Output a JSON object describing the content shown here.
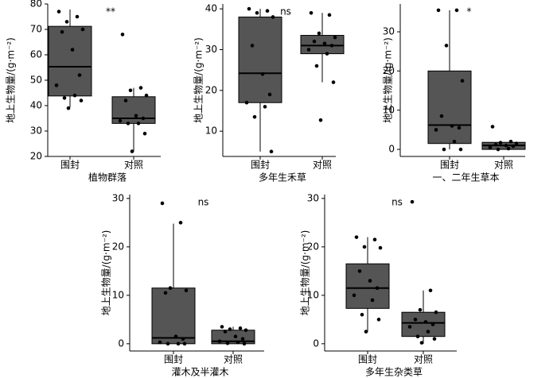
{
  "chart_data": [
    {
      "type": "box",
      "xlabel": "植物群落",
      "ylabel": "地上生物量/(g·m⁻²)",
      "annotation": "**",
      "categories": [
        "围封",
        "对照"
      ],
      "ylim": [
        20,
        80
      ],
      "yticks": [
        20,
        30,
        40,
        50,
        60,
        70,
        80
      ],
      "color": "#555555",
      "point_color": "#000000",
      "boxes": [
        {
          "min": 39.4,
          "q1": 43.8,
          "median": 55.3,
          "q3": 71.2,
          "max": 77.8,
          "points": [
            77,
            75,
            73,
            70,
            69,
            62,
            52,
            48,
            44,
            43,
            42,
            39
          ]
        },
        {
          "min": 22,
          "q1": 33,
          "median": 35,
          "q3": 43.5,
          "max": 47,
          "points": [
            68,
            47,
            46,
            44,
            42,
            36,
            35,
            34,
            33,
            33,
            29,
            22
          ]
        }
      ]
    },
    {
      "type": "box",
      "xlabel": "多年生禾草",
      "ylabel": "地上生物量/(g·m⁻²)",
      "annotation": "ns",
      "categories": [
        "围封",
        "对照"
      ],
      "ylim": [
        3.8,
        41.2
      ],
      "yticks": [
        10,
        20,
        30,
        40
      ],
      "color": "#555555",
      "point_color": "#000000",
      "boxes": [
        {
          "min": 5,
          "q1": 17,
          "median": 24.2,
          "q3": 38,
          "max": 40,
          "points": [
            40,
            39.5,
            39,
            38,
            31,
            24,
            19,
            17,
            16,
            13.5,
            5
          ]
        },
        {
          "min": 22,
          "q1": 29,
          "median": 31,
          "q3": 33.5,
          "max": 39,
          "points": [
            39,
            38.5,
            34,
            33,
            32,
            31.5,
            31,
            30,
            29,
            26,
            22,
            12.7
          ]
        }
      ]
    },
    {
      "type": "box",
      "xlabel": "一、二年生草本",
      "ylabel": "地上生物量/(g·m⁻²)",
      "annotation": "*",
      "categories": [
        "围封",
        "对照"
      ],
      "ylim": [
        -1.8,
        37.1
      ],
      "yticks": [
        0,
        10,
        20,
        30
      ],
      "color": "#555555",
      "point_color": "#000000",
      "boxes": [
        {
          "min": 0,
          "q1": 1.5,
          "median": 6.2,
          "q3": 20,
          "max": 35.5,
          "points": [
            35.5,
            35.5,
            26.5,
            17.5,
            8.5,
            6,
            5.5,
            5,
            2,
            0,
            0
          ]
        },
        {
          "min": 0,
          "q1": 0,
          "median": 1,
          "q3": 1.8,
          "max": 1.8,
          "points": [
            5.8,
            2,
            1.7,
            1.5,
            1.2,
            1,
            0.8,
            0.5,
            0.2,
            0
          ]
        }
      ]
    },
    {
      "type": "box",
      "xlabel": "灌木及半灌木",
      "ylabel": "地上生物量/(g·m⁻²)",
      "annotation": "ns",
      "categories": [
        "围封",
        "对照"
      ],
      "ylim": [
        -1.5,
        30.8
      ],
      "yticks": [
        0,
        10,
        20,
        30
      ],
      "color": "#555555",
      "point_color": "#000000",
      "boxes": [
        {
          "min": 0,
          "q1": 0,
          "median": 1.2,
          "q3": 11.5,
          "max": 24.8,
          "points": [
            29,
            25,
            11.5,
            11,
            10.5,
            1.5,
            1,
            0.3,
            0,
            0,
            0
          ]
        },
        {
          "min": 0,
          "q1": 0,
          "median": 0.5,
          "q3": 2.8,
          "max": 3.5,
          "points": [
            3.5,
            3.2,
            3,
            2.8,
            2.5,
            1.5,
            1,
            0.5,
            0.3,
            0.1,
            0
          ]
        }
      ]
    },
    {
      "type": "box",
      "xlabel": "多年生杂类草",
      "ylabel": "地上生物量/(g·m⁻²)",
      "annotation": "ns",
      "categories": [
        "围封",
        "对照"
      ],
      "ylim": [
        -1.5,
        30.8
      ],
      "yticks": [
        0,
        10,
        20,
        30
      ],
      "color": "#555555",
      "point_color": "#000000",
      "boxes": [
        {
          "min": 2.5,
          "q1": 7.3,
          "median": 11.5,
          "q3": 16.5,
          "max": 22,
          "points": [
            22,
            21.5,
            20,
            19.8,
            15,
            13,
            11.5,
            10,
            9,
            6,
            5,
            2.5
          ]
        },
        {
          "min": 0,
          "q1": 1.5,
          "median": 4.3,
          "q3": 6.5,
          "max": 11,
          "points": [
            29.3,
            11,
            7,
            6.5,
            5,
            4.5,
            4,
            3.5,
            2.5,
            1.5,
            1,
            0.2
          ]
        }
      ]
    }
  ]
}
